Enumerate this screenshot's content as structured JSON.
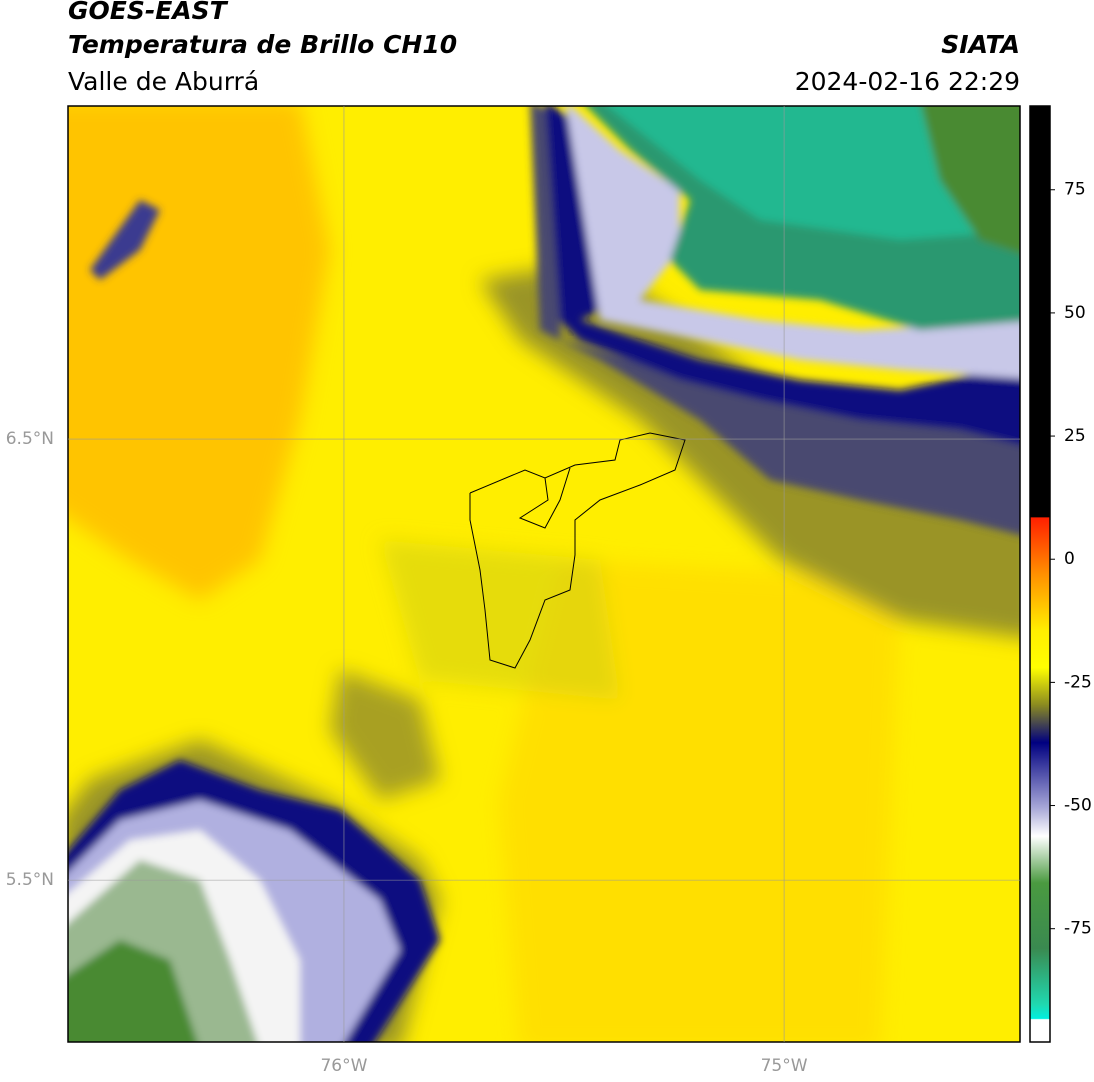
{
  "header": {
    "title": "GOES-EAST",
    "subtitle": "Temperatura de Brillo CH10",
    "region": "Valle de Aburrá",
    "source": "SIATA",
    "datetime": "2024-02-16 22:29"
  },
  "chart_data": {
    "type": "map",
    "xlim": [
      -76.627,
      -74.464
    ],
    "ylim": [
      5.133,
      7.255
    ],
    "xticks": [
      {
        "value": -76,
        "label": "76°W"
      },
      {
        "value": -75,
        "label": "75°W"
      }
    ],
    "yticks": [
      {
        "value": 6.5,
        "label": "6.5°N"
      },
      {
        "value": 5.5,
        "label": "5.5°N"
      }
    ],
    "grid": true,
    "colorbar": {
      "lim": [
        -98,
        92
      ],
      "ticks": [
        75,
        50,
        25,
        0,
        -25,
        -50,
        -75
      ]
    }
  }
}
